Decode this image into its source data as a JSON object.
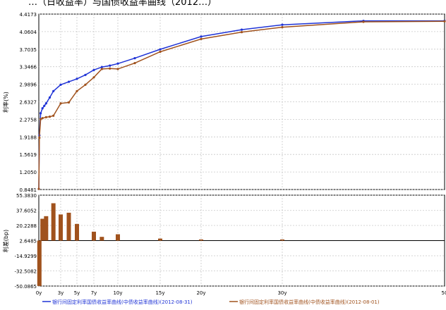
{
  "title_fragment": "…（日收益率）与国债收益率曲线（2012…）",
  "chart_data": [
    {
      "type": "line",
      "ylabel": "利率(%)",
      "yticks": [
        "4.4173",
        "4.0604",
        "3.7035",
        "3.3466",
        "2.9896",
        "2.6327",
        "2.2758",
        "1.9188",
        "1.5619",
        "1.2050",
        "0.8481"
      ],
      "ylim": [
        0.8481,
        4.4173
      ],
      "xlim": [
        0,
        50
      ],
      "xticks": [
        "0y",
        "3y",
        "5y",
        "7y",
        "10y",
        "15y",
        "20y",
        "30y",
        "50"
      ],
      "xtick_values": [
        0,
        3,
        5,
        7,
        10,
        15,
        20,
        30,
        50
      ],
      "grid": true,
      "legend_position": "bottom",
      "series": [
        {
          "name": "银行间固定利率国债收益率曲线(中债收益率曲线)(2012-08-31)",
          "color": "#1f33d6",
          "x": [
            0,
            0.08,
            0.25,
            0.5,
            0.75,
            1,
            1.5,
            2,
            3,
            4,
            5,
            6,
            7,
            8,
            9,
            10,
            12,
            15,
            20,
            25,
            30,
            40,
            50
          ],
          "y": [
            0.86,
            1.95,
            2.4,
            2.5,
            2.55,
            2.6,
            2.72,
            2.85,
            2.98,
            3.04,
            3.1,
            3.18,
            3.28,
            3.34,
            3.37,
            3.41,
            3.52,
            3.7,
            3.96,
            4.1,
            4.2,
            4.28,
            4.28
          ]
        },
        {
          "name": "银行间固定利率国债收益率曲线(中债收益率曲线)(2012-08-01)",
          "color": "#a0521d",
          "x": [
            0,
            0.08,
            0.25,
            0.5,
            1,
            1.5,
            2,
            3,
            4,
            5,
            6,
            7,
            8,
            9,
            10,
            12,
            15,
            20,
            25,
            30,
            40,
            50
          ],
          "y": [
            0.86,
            1.9,
            2.28,
            2.3,
            2.32,
            2.33,
            2.35,
            2.6,
            2.62,
            2.85,
            2.98,
            3.13,
            3.3,
            3.31,
            3.3,
            3.42,
            3.65,
            3.91,
            4.05,
            4.15,
            4.26,
            4.27
          ]
        }
      ]
    },
    {
      "type": "bar",
      "ylabel": "利差(bp)",
      "yticks": [
        "55.3830",
        "37.6052",
        "20.2288",
        "2.6485",
        "-14.9299",
        "-32.5082",
        "-50.0865"
      ],
      "ylim": [
        -50.0865,
        55.383
      ],
      "baseline": 2.6485,
      "color": "#a0521d",
      "x": [
        0.08,
        0.5,
        1,
        2,
        3,
        4,
        5,
        7,
        8,
        10,
        15,
        20,
        30
      ],
      "values": [
        -50.0,
        28.0,
        31.0,
        46.0,
        33.0,
        35.0,
        22.0,
        13.0,
        7.0,
        10.0,
        5.0,
        4.0,
        4.0
      ]
    }
  ],
  "legend": [
    {
      "label": "银行间固定利率国债收益率曲线(中债收益率曲线)(2012-08-31)",
      "color": "#1f33d6"
    },
    {
      "label": "银行间固定利率国债收益率曲线(中债收益率曲线)(2012-08-01)",
      "color": "#a0521d"
    }
  ]
}
